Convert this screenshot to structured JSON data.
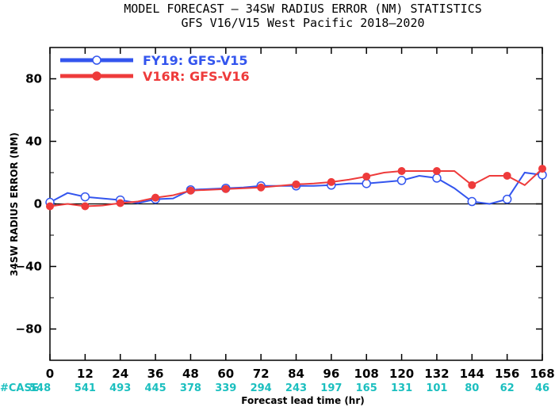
{
  "chart_data": {
    "type": "line",
    "title": "MODEL FORECAST – 34SW RADIUS ERROR (NM) STATISTICS",
    "subtitle": "GFS V16/V15 West Pacific 2018–2020",
    "xlabel": "Forecast lead time (hr)",
    "ylabel": "34SW RADIUS ERROR (NM)",
    "xlim": [
      0,
      168
    ],
    "ylim": [
      -100,
      100
    ],
    "xticks": [
      0,
      12,
      24,
      36,
      48,
      60,
      72,
      84,
      96,
      108,
      120,
      132,
      144,
      156,
      168
    ],
    "yticks": [
      -80,
      -40,
      0,
      40,
      80
    ],
    "ytick_labels": [
      "−80",
      "−40",
      "0",
      "40",
      "80"
    ],
    "legend_position": "top-left",
    "series": [
      {
        "name": "FY19: GFS-V15",
        "color": "#3355ee",
        "marker": "open-circle",
        "x": [
          0,
          6,
          12,
          18,
          24,
          30,
          36,
          42,
          48,
          54,
          60,
          66,
          72,
          78,
          84,
          90,
          96,
          102,
          108,
          114,
          120,
          126,
          132,
          138,
          144,
          150,
          156,
          162,
          168
        ],
        "y": [
          1,
          7,
          4.5,
          3.5,
          2.5,
          0.5,
          3,
          3.5,
          9,
          9.5,
          10,
          10.5,
          11.5,
          11.5,
          11.5,
          11.5,
          12,
          13,
          13,
          14,
          15,
          18,
          16.5,
          10,
          1.5,
          0,
          3,
          20,
          18.5
        ],
        "markers_at": [
          0,
          12,
          24,
          36,
          48,
          60,
          72,
          84,
          96,
          108,
          120,
          132,
          144,
          156,
          168
        ]
      },
      {
        "name": "V16R: GFS-V16",
        "color": "#ee3b3b",
        "marker": "filled-circle",
        "x": [
          0,
          6,
          12,
          18,
          24,
          30,
          36,
          42,
          48,
          54,
          60,
          66,
          72,
          78,
          84,
          90,
          96,
          102,
          108,
          114,
          120,
          126,
          132,
          138,
          144,
          150,
          156,
          162,
          168
        ],
        "y": [
          -1.5,
          0,
          -1.5,
          -1,
          0.5,
          1.5,
          4,
          5.5,
          8.5,
          9,
          9.5,
          10,
          10.5,
          11.5,
          12.5,
          13,
          14,
          15.5,
          17.5,
          20,
          21,
          21,
          21,
          21,
          12,
          18,
          18,
          12,
          22.5
        ],
        "markers_at": [
          0,
          12,
          24,
          36,
          48,
          60,
          72,
          84,
          96,
          108,
          120,
          132,
          144,
          156,
          168
        ]
      }
    ],
    "case_label": "#CASE",
    "cases": [
      548,
      541,
      493,
      445,
      378,
      339,
      294,
      243,
      197,
      165,
      131,
      101,
      80,
      62,
      46
    ],
    "zero_line": true,
    "grid": false
  }
}
